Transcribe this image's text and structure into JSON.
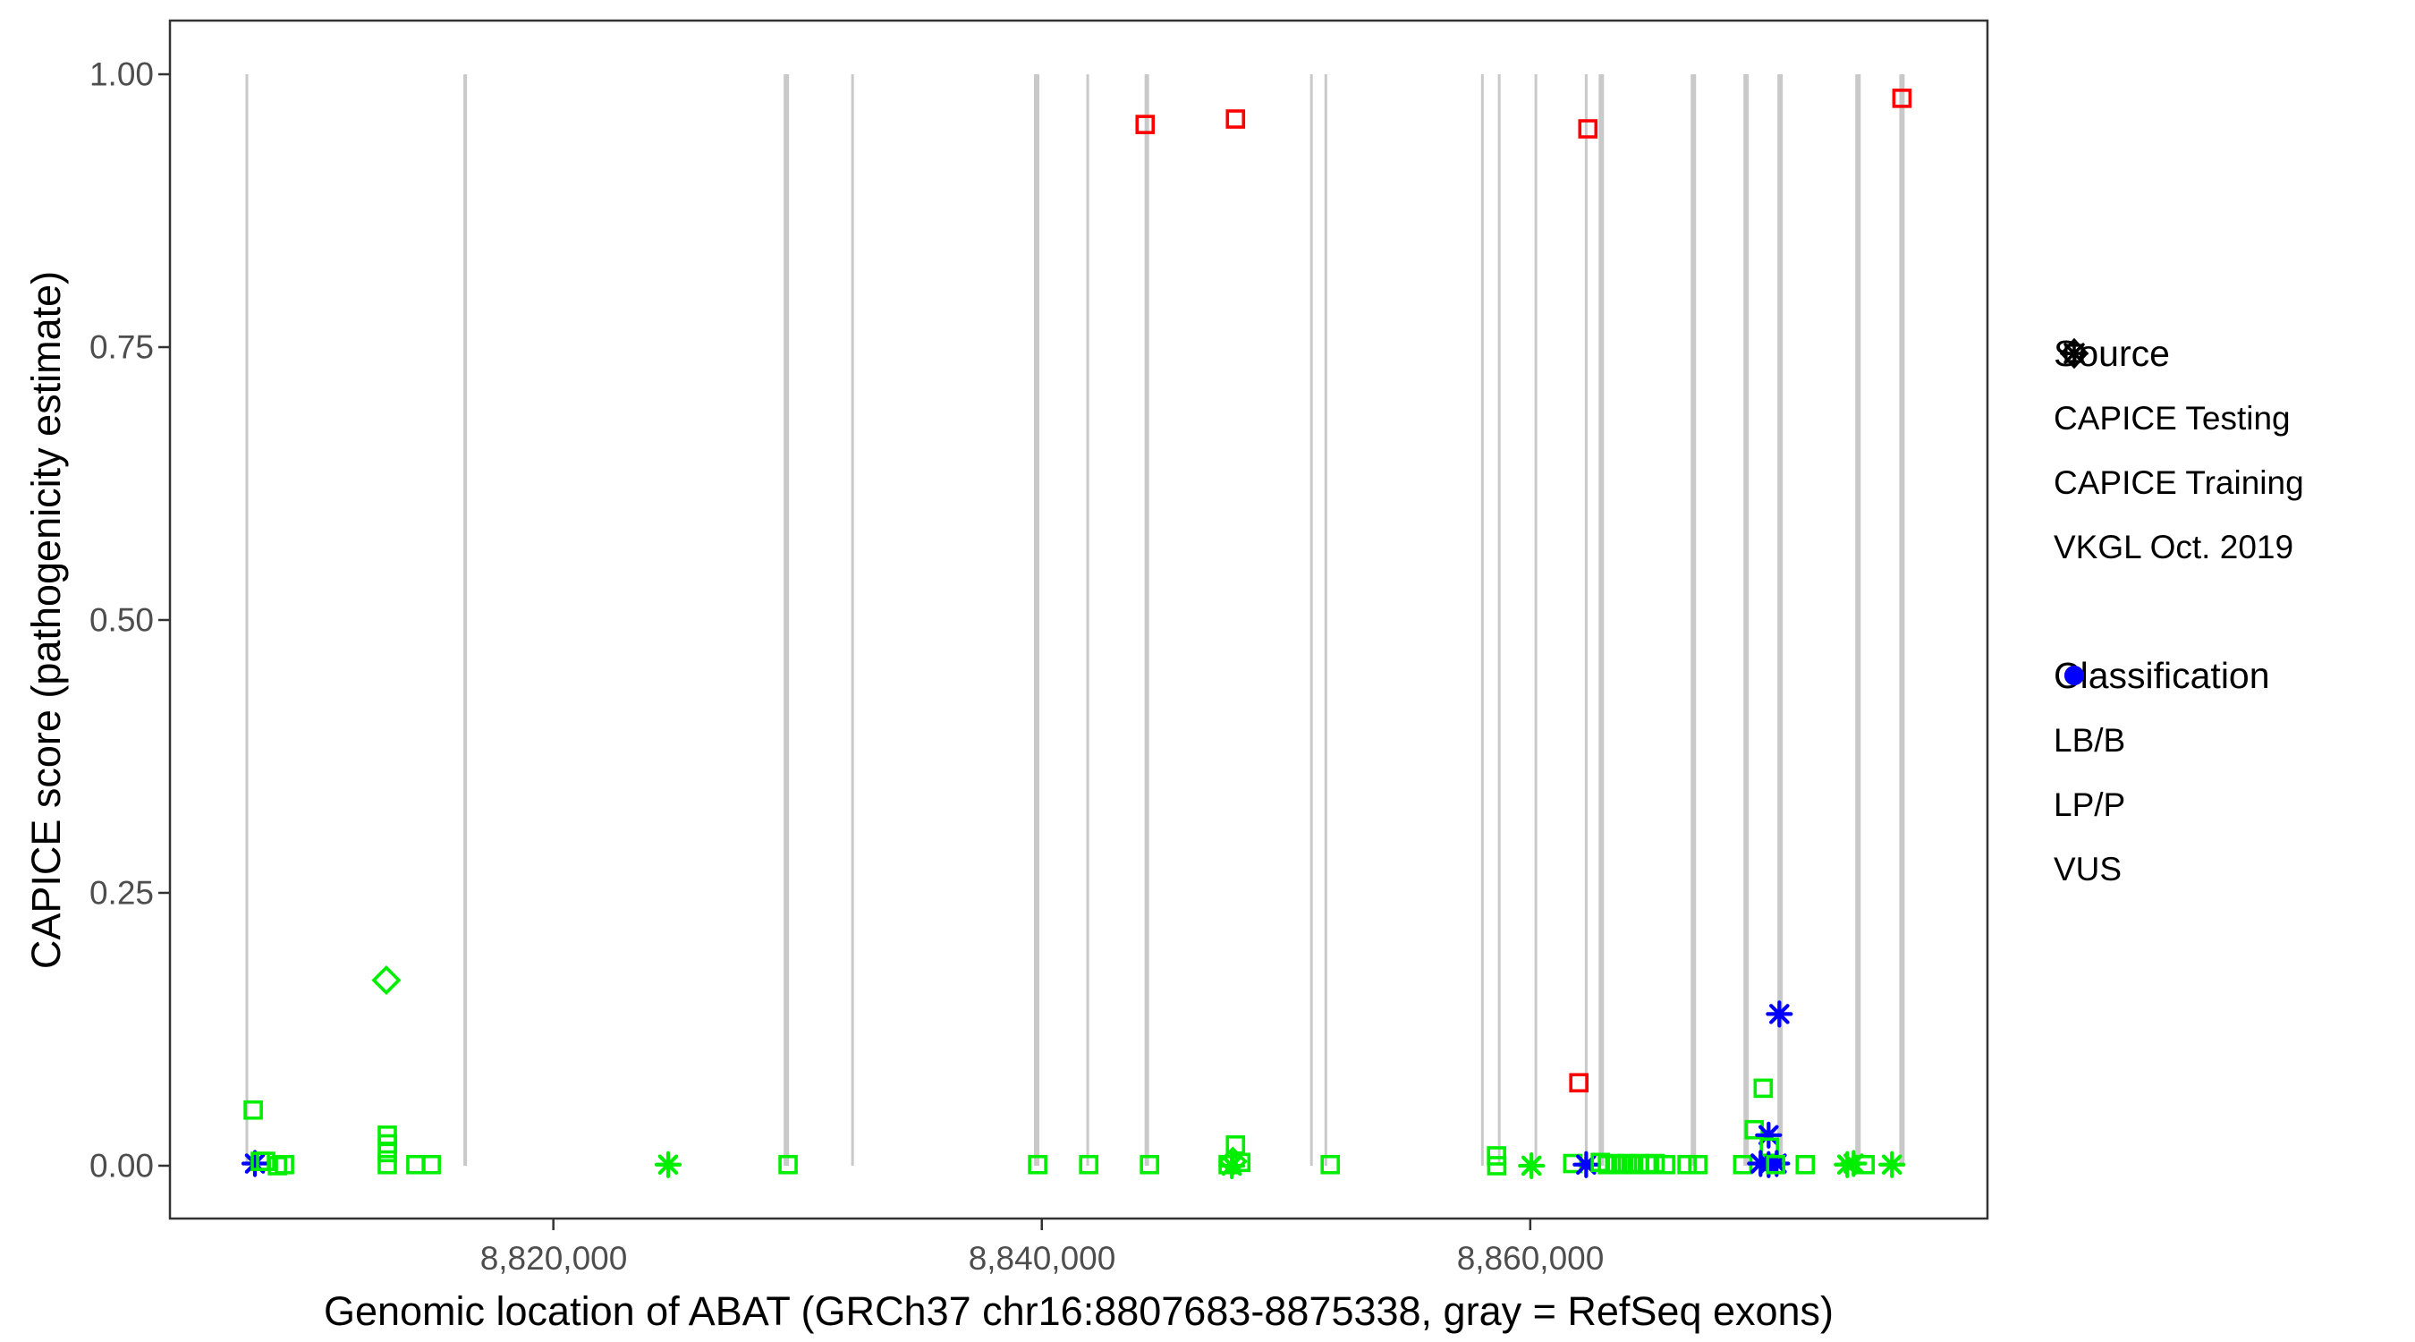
{
  "figure": {
    "kind": "scatter plot",
    "x_title": "Genomic location of ABAT (GRCh37 chr16:8807683-8875338, gray = RefSeq exons)",
    "y_title": "CAPICE score (pathogenicity estimate)"
  },
  "y_axis": {
    "ticks": [
      "1.00",
      "0.75",
      "0.50",
      "0.25",
      "0.00"
    ]
  },
  "x_axis": {
    "ticks": [
      {
        "label": "8,820,000",
        "value": 8820000
      },
      {
        "label": "8,840,000",
        "value": 8840000
      },
      {
        "label": "8,860,000",
        "value": 8860000
      }
    ]
  },
  "legend": {
    "source": {
      "title": "Source",
      "items": [
        {
          "label": "CAPICE Testing",
          "shape": "diamond"
        },
        {
          "label": "CAPICE Training",
          "shape": "square"
        },
        {
          "label": "VKGL Oct. 2019",
          "shape": "asterisk"
        }
      ]
    },
    "classification": {
      "title": "Classification",
      "items": [
        {
          "label": "LB/B",
          "color": "#00EE00"
        },
        {
          "label": "LP/P",
          "color": "#FF0000"
        },
        {
          "label": "VUS",
          "color": "#0000FF"
        }
      ]
    }
  },
  "chart_data": {
    "type": "scatter",
    "title": "",
    "xlabel": "Genomic location of ABAT (GRCh37 chr16:8807683-8875338, gray = RefSeq exons)",
    "ylabel": "CAPICE score (pathogenicity estimate)",
    "x_domain": [
      8804300,
      8878721
    ],
    "y_domain": [
      -0.0484,
      1.0492
    ],
    "x_tick_values": [
      8820000,
      8840000,
      8860000
    ],
    "y_tick_values": [
      1.0,
      0.75,
      0.5,
      0.25,
      0.0
    ],
    "grid": false,
    "legend_position": "right",
    "colors": {
      "LB/B": "#00EE00",
      "LP/P": "#FF0000",
      "VUS": "#0000FF"
    },
    "exon_color": "#C9C9C9",
    "exon_segments_y": [
      0,
      1
    ],
    "exons": [
      {
        "pos": 8807450,
        "w": 3
      },
      {
        "pos": 8816390,
        "w": 4
      },
      {
        "pos": 8829540,
        "w": 6
      },
      {
        "pos": 8832250,
        "w": 3
      },
      {
        "pos": 8839790,
        "w": 6
      },
      {
        "pos": 8841880,
        "w": 3
      },
      {
        "pos": 8844300,
        "w": 5
      },
      {
        "pos": 8851040,
        "w": 3
      },
      {
        "pos": 8851630,
        "w": 3
      },
      {
        "pos": 8858040,
        "w": 3
      },
      {
        "pos": 8858730,
        "w": 3
      },
      {
        "pos": 8860230,
        "w": 3
      },
      {
        "pos": 8862290,
        "w": 3
      },
      {
        "pos": 8862910,
        "w": 6
      },
      {
        "pos": 8866680,
        "w": 6
      },
      {
        "pos": 8868840,
        "w": 6
      },
      {
        "pos": 8870230,
        "w": 6
      },
      {
        "pos": 8873420,
        "w": 6
      },
      {
        "pos": 8875220,
        "w": 6
      }
    ],
    "points": [
      [
        8807710,
        0.051,
        "square",
        "LB/B"
      ],
      [
        8807780,
        0.002,
        "asterisk",
        "VUS"
      ],
      [
        8808000,
        0.004,
        "square",
        "LB/B"
      ],
      [
        8808220,
        0.004,
        "square",
        "LB/B"
      ],
      [
        8808700,
        0.0,
        "square",
        "LB/B"
      ],
      [
        8808990,
        0.001,
        "square",
        "LB/B"
      ],
      [
        8813160,
        0.17,
        "diamond",
        "LB/B"
      ],
      [
        8813200,
        0.028,
        "square",
        "LB/B"
      ],
      [
        8813210,
        0.02,
        "square",
        "LB/B"
      ],
      [
        8813200,
        0.012,
        "square",
        "LB/B"
      ],
      [
        8813200,
        0.001,
        "square",
        "LB/B"
      ],
      [
        8814370,
        0.001,
        "square",
        "LB/B"
      ],
      [
        8815000,
        0.001,
        "square",
        "LB/B"
      ],
      [
        8824700,
        0.001,
        "asterisk",
        "LB/B"
      ],
      [
        8829610,
        0.001,
        "square",
        "LB/B"
      ],
      [
        8839830,
        0.001,
        "square",
        "LB/B"
      ],
      [
        8841920,
        0.001,
        "square",
        "LB/B"
      ],
      [
        8844230,
        0.954,
        "square",
        "LP/P"
      ],
      [
        8844410,
        0.001,
        "square",
        "LB/B"
      ],
      [
        8847930,
        0.959,
        "square",
        "LP/P"
      ],
      [
        8847930,
        0.019,
        "square",
        "LB/B"
      ],
      [
        8847820,
        0.004,
        "diamond",
        "LB/B"
      ],
      [
        8848150,
        0.003,
        "square",
        "LB/B"
      ],
      [
        8847630,
        0.001,
        "square",
        "LB/B"
      ],
      [
        8847780,
        0.0,
        "asterisk",
        "LB/B"
      ],
      [
        8851810,
        0.001,
        "square",
        "LB/B"
      ],
      [
        8858620,
        0.009,
        "square",
        "LB/B"
      ],
      [
        8858630,
        0.0,
        "square",
        "LB/B"
      ],
      [
        8860050,
        0.0,
        "asterisk",
        "LB/B"
      ],
      [
        8861740,
        0.002,
        "square",
        "LB/B"
      ],
      [
        8861990,
        0.076,
        "square",
        "LP/P"
      ],
      [
        8862290,
        0.001,
        "asterisk",
        "VUS"
      ],
      [
        8862360,
        0.95,
        "square",
        "LP/P"
      ],
      [
        8862870,
        0.003,
        "square",
        "LB/B"
      ],
      [
        8863160,
        0.001,
        "square",
        "LB/B"
      ],
      [
        8863460,
        0.002,
        "square",
        "LB/B"
      ],
      [
        8863710,
        0.001,
        "square",
        "LB/B"
      ],
      [
        8863970,
        0.002,
        "square",
        "LB/B"
      ],
      [
        8864230,
        0.001,
        "square",
        "LB/B"
      ],
      [
        8864480,
        0.002,
        "square",
        "LB/B"
      ],
      [
        8864780,
        0.001,
        "square",
        "LB/B"
      ],
      [
        8865110,
        0.002,
        "square",
        "LB/B"
      ],
      [
        8865540,
        0.001,
        "square",
        "LB/B"
      ],
      [
        8866420,
        0.001,
        "square",
        "LB/B"
      ],
      [
        8866860,
        0.001,
        "square",
        "LB/B"
      ],
      [
        8868700,
        0.001,
        "square",
        "LB/B"
      ],
      [
        8869170,
        0.033,
        "square",
        "LB/B"
      ],
      [
        8869540,
        0.071,
        "square",
        "LB/B"
      ],
      [
        8869760,
        0.028,
        "asterisk",
        "VUS"
      ],
      [
        8869790,
        0.017,
        "square",
        "LB/B"
      ],
      [
        8870200,
        0.139,
        "asterisk",
        "VUS"
      ],
      [
        8869430,
        0.002,
        "asterisk",
        "VUS"
      ],
      [
        8869760,
        0.001,
        "asterisk",
        "VUS"
      ],
      [
        8870090,
        0.002,
        "asterisk",
        "VUS"
      ],
      [
        8870050,
        0.001,
        "square",
        "LB/B"
      ],
      [
        8871260,
        0.001,
        "square",
        "LB/B"
      ],
      [
        8872980,
        0.001,
        "asterisk",
        "LB/B"
      ],
      [
        8873240,
        0.002,
        "asterisk",
        "LB/B"
      ],
      [
        8873710,
        0.001,
        "square",
        "LB/B"
      ],
      [
        8874810,
        0.001,
        "asterisk",
        "LB/B"
      ],
      [
        8875220,
        0.978,
        "square",
        "LP/P"
      ]
    ]
  }
}
